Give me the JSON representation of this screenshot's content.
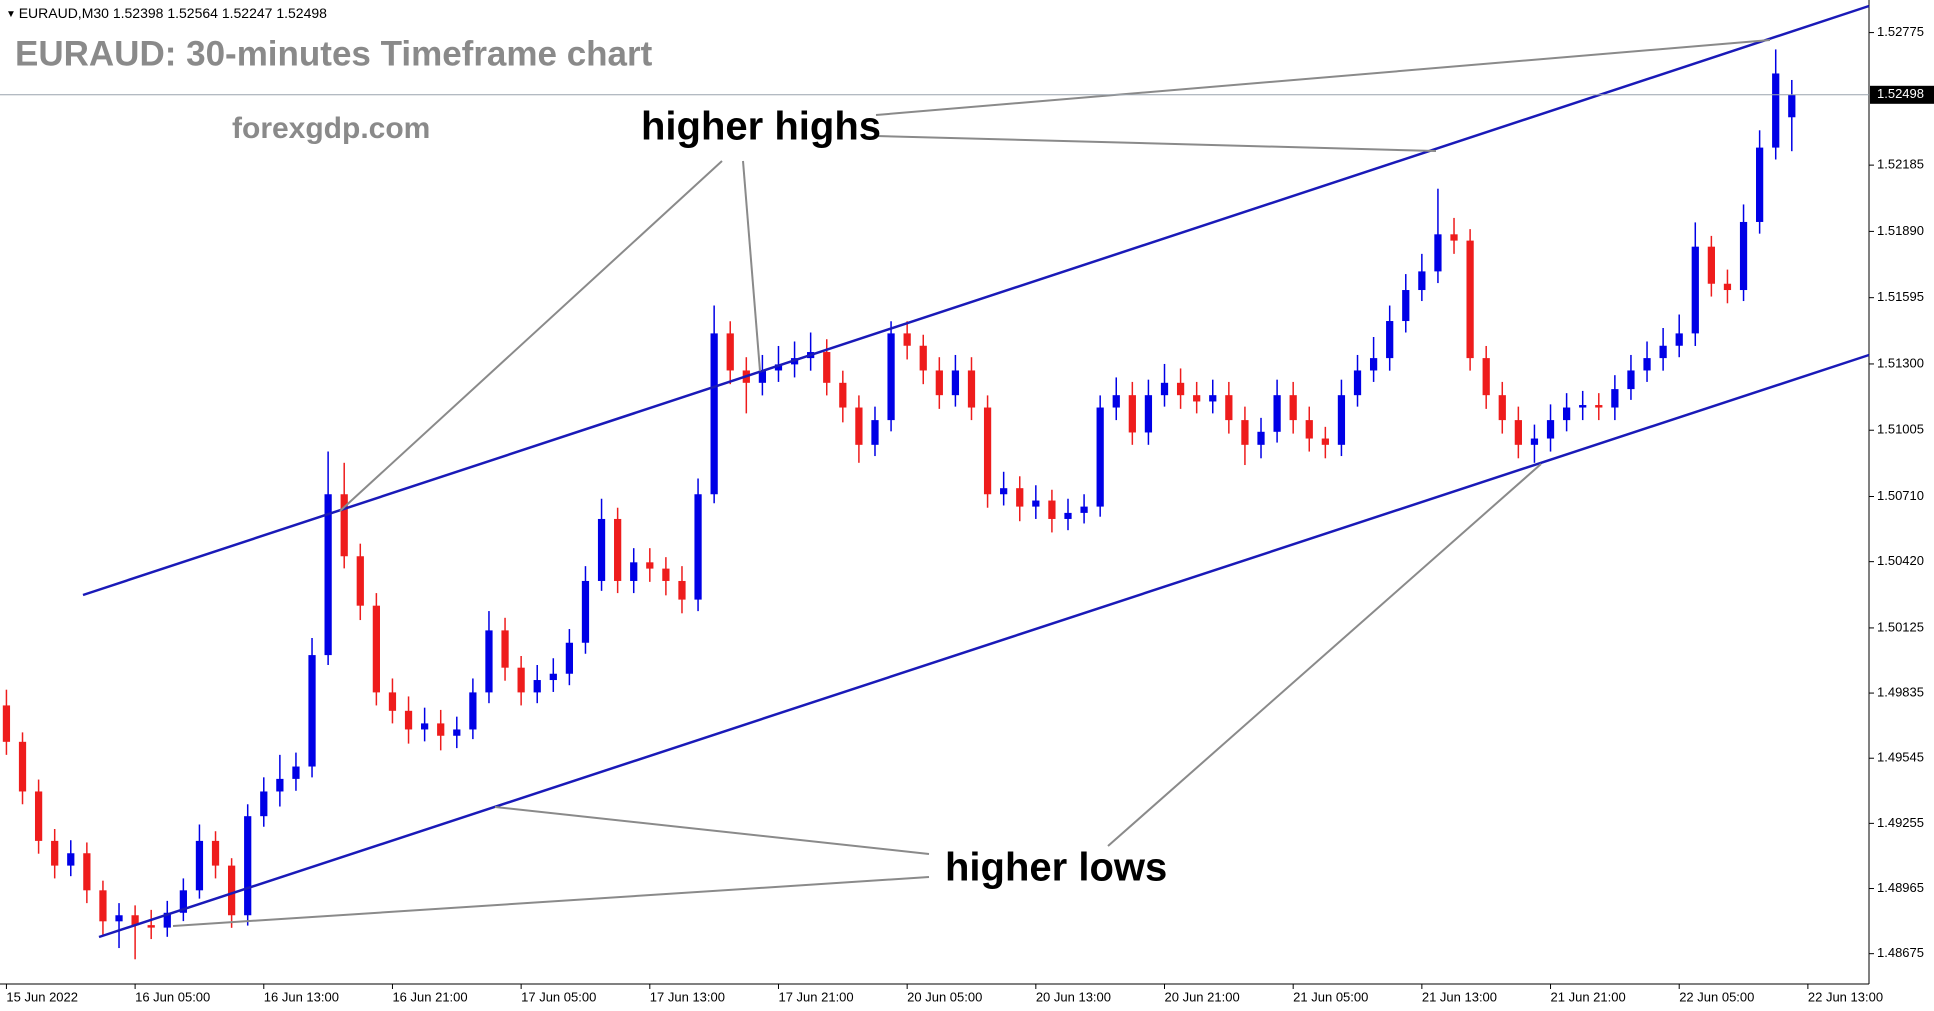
{
  "chart_data": {
    "type": "candlestick",
    "symbol": "EURAUD,M30",
    "title": "EURAUD: 30-minutes Timeframe chart",
    "watermark": "forexgdp.com",
    "annotations": [
      "higher highs",
      "higher lows"
    ],
    "up_color": "#0000e6",
    "down_color": "#ee1c1c",
    "grid": false,
    "xlim": [
      -0.4,
      115.8
    ],
    "xticks": [
      {
        "value": 0,
        "label": "15 Jun 2022"
      },
      {
        "value": 8,
        "label": "16 Jun 05:00"
      },
      {
        "value": 16,
        "label": "16 Jun 13:00"
      },
      {
        "value": 24,
        "label": "16 Jun 21:00"
      },
      {
        "value": 32,
        "label": "17 Jun 05:00"
      },
      {
        "value": 40,
        "label": "17 Jun 13:00"
      },
      {
        "value": 48,
        "label": "17 Jun 21:00"
      },
      {
        "value": 56,
        "label": "20 Jun 05:00"
      },
      {
        "value": 64,
        "label": "20 Jun 13:00"
      },
      {
        "value": 72,
        "label": "20 Jun 21:00"
      },
      {
        "value": 80,
        "label": "21 Jun 05:00"
      },
      {
        "value": 88,
        "label": "21 Jun 13:00"
      },
      {
        "value": 96,
        "label": "21 Jun 21:00"
      },
      {
        "value": 104,
        "label": "22 Jun 05:00"
      },
      {
        "value": 112,
        "label": "22 Jun 13:00"
      }
    ],
    "ylim": [
      1.4854,
      1.5292
    ],
    "yticks": [
      1.52775,
      1.52185,
      {
        "value": 1.5189,
        "label": "1.51890"
      },
      1.51595,
      {
        "value": 1.513,
        "label": "1.51300"
      },
      1.51005,
      {
        "value": 1.5071,
        "label": "1.50710"
      },
      {
        "value": 1.5042,
        "label": "1.50420"
      },
      1.50125,
      1.49835,
      1.49545,
      1.49255,
      1.48965,
      1.48675
    ],
    "open": [
      1.4978,
      1.49618,
      1.49397,
      1.49177,
      1.49067,
      1.49122,
      1.48957,
      1.48819,
      1.48846,
      1.48802,
      1.48791,
      1.48857,
      1.48957,
      1.49177,
      1.49067,
      1.48846,
      1.49287,
      1.49397,
      1.49453,
      1.49508,
      1.50004,
      1.5072,
      1.50444,
      1.50224,
      1.49838,
      1.49756,
      1.49673,
      1.497,
      1.49645,
      1.49673,
      1.49838,
      1.50114,
      1.49948,
      1.49838,
      1.49893,
      1.49921,
      1.50059,
      1.50334,
      1.5061,
      1.50334,
      1.50417,
      1.50389,
      1.50334,
      1.50251,
      1.5072,
      1.51436,
      1.51271,
      1.51216,
      1.51271,
      1.51298,
      1.51326,
      1.51353,
      1.51216,
      1.51106,
      1.5094,
      1.5105,
      1.51436,
      1.51381,
      1.51271,
      1.51161,
      1.51271,
      1.51106,
      1.5072,
      1.50747,
      1.50665,
      1.50692,
      1.5061,
      1.50637,
      1.50665,
      1.51106,
      1.51161,
      1.50995,
      1.51161,
      1.51216,
      1.51161,
      1.51133,
      1.51161,
      1.5105,
      1.5094,
      1.50998,
      1.51161,
      1.5105,
      1.50968,
      1.5094,
      1.51161,
      1.51271,
      1.51326,
      1.51491,
      1.51629,
      1.51712,
      1.51877,
      1.51849,
      1.51326,
      1.51161,
      1.5105,
      1.5094,
      1.50968,
      1.5105,
      1.51106,
      1.51117,
      1.51106,
      1.51188,
      1.51271,
      1.51326,
      1.51381,
      1.51436,
      1.51822,
      1.51657,
      1.51629,
      1.51932,
      1.52263,
      1.52398
    ],
    "high": [
      1.4985,
      1.4966,
      1.4945,
      1.4923,
      1.4918,
      1.4917,
      1.49,
      1.489,
      1.4889,
      1.4887,
      1.4891,
      1.4901,
      1.4925,
      1.4922,
      1.491,
      1.4934,
      1.4946,
      1.4956,
      1.4957,
      1.5008,
      1.5091,
      1.5086,
      1.505,
      1.5028,
      1.499,
      1.4982,
      1.4977,
      1.4976,
      1.4973,
      1.499,
      1.502,
      1.5017,
      1.5,
      1.4996,
      1.4999,
      1.5012,
      1.504,
      1.507,
      1.5066,
      1.5048,
      1.5048,
      1.5044,
      1.504,
      1.5079,
      1.5156,
      1.5149,
      1.5133,
      1.5134,
      1.5138,
      1.514,
      1.5144,
      1.5141,
      1.5127,
      1.5116,
      1.5111,
      1.5149,
      1.5149,
      1.5143,
      1.5133,
      1.5134,
      1.5133,
      1.5116,
      1.5082,
      1.508,
      1.5076,
      1.5074,
      1.507,
      1.5072,
      1.5116,
      1.5124,
      1.5122,
      1.5123,
      1.513,
      1.5128,
      1.5122,
      1.5123,
      1.5122,
      1.5111,
      1.5106,
      1.5123,
      1.5122,
      1.5111,
      1.5102,
      1.5123,
      1.5134,
      1.5142,
      1.5156,
      1.517,
      1.5179,
      1.5208,
      1.5195,
      1.519,
      1.5138,
      1.5122,
      1.5111,
      1.5103,
      1.5112,
      1.5117,
      1.5118,
      1.5117,
      1.5125,
      1.5134,
      1.514,
      1.5146,
      1.5152,
      1.5193,
      1.5187,
      1.5172,
      1.5201,
      1.5234,
      1.527,
      1.52564
    ],
    "low": [
      1.4956,
      1.4934,
      1.4912,
      1.4901,
      1.4902,
      1.489,
      1.4876,
      1.487,
      1.4865,
      1.4874,
      1.4875,
      1.4882,
      1.4892,
      1.4901,
      1.4879,
      1.488,
      1.4924,
      1.4933,
      1.494,
      1.4946,
      1.4996,
      1.5039,
      1.5016,
      1.4978,
      1.497,
      1.4961,
      1.4962,
      1.4958,
      1.4959,
      1.4963,
      1.4979,
      1.4989,
      1.4978,
      1.4979,
      1.4984,
      1.4987,
      1.5001,
      1.5029,
      1.5028,
      1.5028,
      1.5033,
      1.5027,
      1.5019,
      1.502,
      1.5068,
      1.5121,
      1.5108,
      1.5116,
      1.5122,
      1.5124,
      1.5127,
      1.5116,
      1.5104,
      1.5086,
      1.5089,
      1.51,
      1.5132,
      1.5121,
      1.511,
      1.5111,
      1.5105,
      1.5066,
      1.5067,
      1.506,
      1.5061,
      1.5055,
      1.5056,
      1.5059,
      1.5062,
      1.5105,
      1.5094,
      1.5094,
      1.5111,
      1.511,
      1.5108,
      1.5108,
      1.5099,
      1.5085,
      1.5088,
      1.5095,
      1.5099,
      1.5091,
      1.5088,
      1.5089,
      1.5111,
      1.5122,
      1.5127,
      1.5144,
      1.5158,
      1.5166,
      1.5179,
      1.5127,
      1.511,
      1.5099,
      1.5088,
      1.5086,
      1.5091,
      1.51,
      1.5105,
      1.5105,
      1.5105,
      1.5114,
      1.5122,
      1.5127,
      1.5133,
      1.5138,
      1.516,
      1.5157,
      1.5158,
      1.5188,
      1.5221,
      1.52247
    ],
    "close": [
      1.49618,
      1.49397,
      1.49177,
      1.49067,
      1.49122,
      1.48957,
      1.48819,
      1.48846,
      1.48802,
      1.48791,
      1.48857,
      1.48957,
      1.49177,
      1.49067,
      1.48846,
      1.49287,
      1.49397,
      1.49453,
      1.49508,
      1.50004,
      1.5072,
      1.50444,
      1.50224,
      1.49838,
      1.49756,
      1.49673,
      1.497,
      1.49645,
      1.49673,
      1.49838,
      1.50114,
      1.49948,
      1.49838,
      1.49893,
      1.49921,
      1.50059,
      1.50334,
      1.5061,
      1.50334,
      1.50417,
      1.50389,
      1.50334,
      1.50251,
      1.5072,
      1.51436,
      1.51271,
      1.51216,
      1.51271,
      1.51298,
      1.51326,
      1.51353,
      1.51216,
      1.51106,
      1.5094,
      1.5105,
      1.51436,
      1.51381,
      1.51271,
      1.51161,
      1.51271,
      1.51106,
      1.5072,
      1.50747,
      1.50665,
      1.50692,
      1.5061,
      1.50637,
      1.50665,
      1.51106,
      1.51161,
      1.50995,
      1.51161,
      1.51216,
      1.51161,
      1.51133,
      1.51161,
      1.5105,
      1.5094,
      1.50998,
      1.51161,
      1.5105,
      1.50968,
      1.5094,
      1.51161,
      1.51271,
      1.51326,
      1.51491,
      1.51629,
      1.51712,
      1.51877,
      1.51849,
      1.51326,
      1.51161,
      1.5105,
      1.5094,
      1.50968,
      1.5105,
      1.51106,
      1.51117,
      1.51106,
      1.51188,
      1.51271,
      1.51326,
      1.51381,
      1.51436,
      1.51822,
      1.51657,
      1.51629,
      1.51932,
      1.52263,
      1.52593,
      1.52498
    ]
  }
}
